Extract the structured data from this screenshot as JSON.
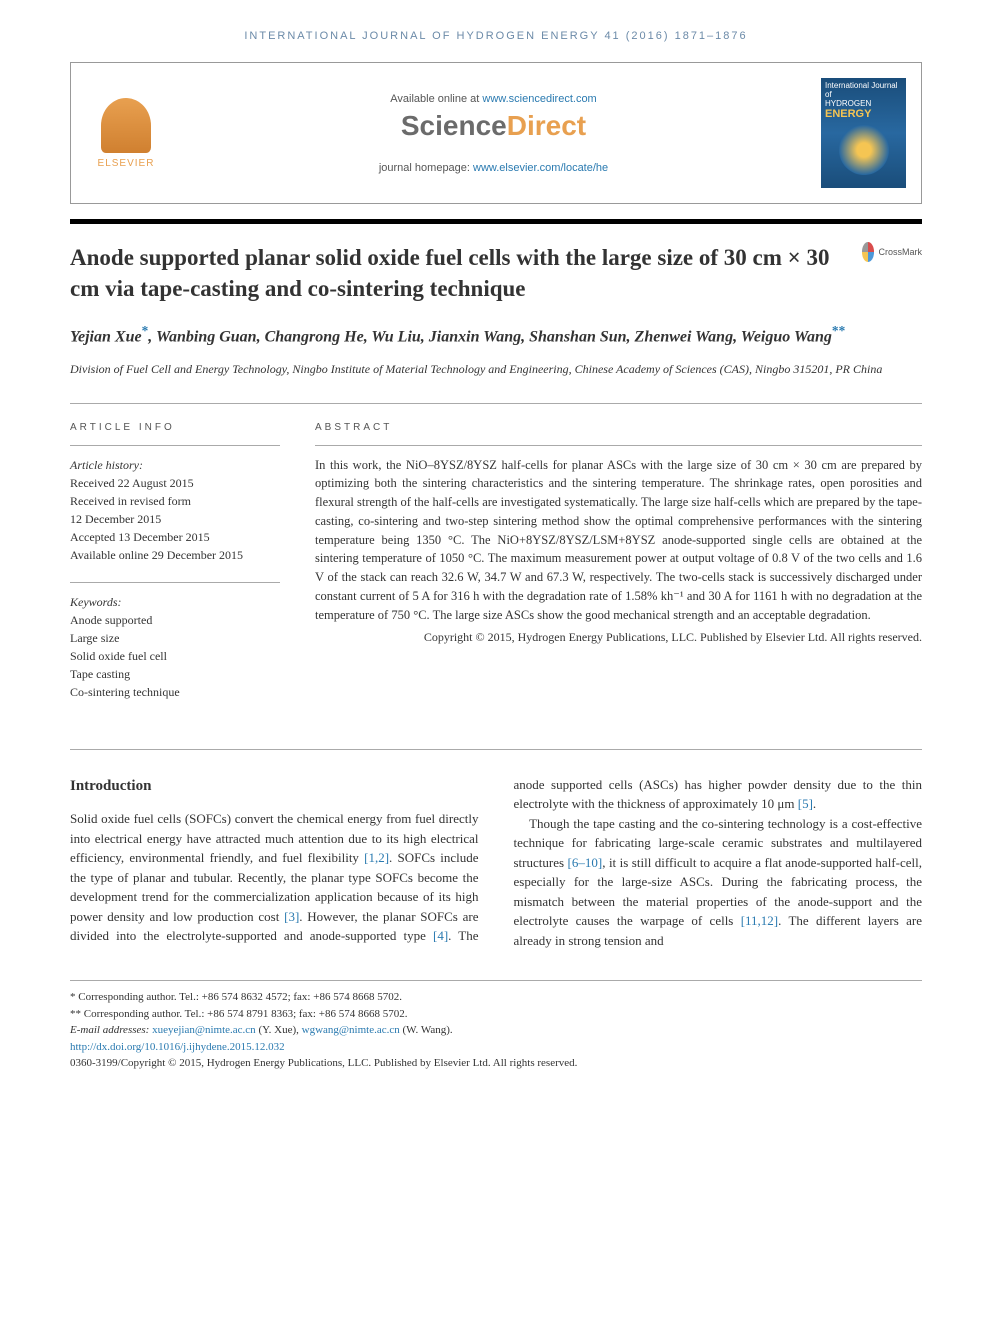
{
  "journal_header": "INTERNATIONAL JOURNAL OF HYDROGEN ENERGY 41 (2016) 1871–1876",
  "top_box": {
    "available_prefix": "Available online at ",
    "available_link": "www.sciencedirect.com",
    "sd_sci": "Science",
    "sd_dir": "Direct",
    "homepage_prefix": "journal homepage: ",
    "homepage_link": "www.elsevier.com/locate/he",
    "elsevier_label": "ELSEVIER",
    "cover_title_line1": "International Journal of",
    "cover_title_line2": "HYDROGEN",
    "cover_title_line3": "ENERGY"
  },
  "crossmark_label": "CrossMark",
  "article_title": "Anode supported planar solid oxide fuel cells with the large size of 30 cm × 30 cm via tape-casting and co-sintering technique",
  "authors_html": "Yejian Xue<sup>*</sup>, Wanbing Guan, Changrong He, Wu Liu, Jianxin Wang, Shanshan Sun, Zhenwei Wang, Weiguo Wang<sup>**</sup>",
  "affiliation": "Division of Fuel Cell and Energy Technology, Ningbo Institute of Material Technology and Engineering, Chinese Academy of Sciences (CAS), Ningbo 315201, PR China",
  "info": {
    "heading": "ARTICLE INFO",
    "history_label": "Article history:",
    "received": "Received 22 August 2015",
    "revised1": "Received in revised form",
    "revised2": "12 December 2015",
    "accepted": "Accepted 13 December 2015",
    "online": "Available online 29 December 2015",
    "keywords_label": "Keywords:",
    "kw1": "Anode supported",
    "kw2": "Large size",
    "kw3": "Solid oxide fuel cell",
    "kw4": "Tape casting",
    "kw5": "Co-sintering technique"
  },
  "abstract": {
    "heading": "ABSTRACT",
    "text": "In this work, the NiO–8YSZ/8YSZ half-cells for planar ASCs with the large size of 30 cm × 30 cm are prepared by optimizing both the sintering characteristics and the sintering temperature. The shrinkage rates, open porosities and flexural strength of the half-cells are investigated systematically. The large size half-cells which are prepared by the tape-casting, co-sintering and two-step sintering method show the optimal comprehensive performances with the sintering temperature being 1350 °C. The NiO+8YSZ/8YSZ/LSM+8YSZ anode-supported single cells are obtained at the sintering temperature of 1050 °C. The maximum measurement power at output voltage of 0.8 V of the two cells and 1.6 V of the stack can reach 32.6 W, 34.7 W and 67.3 W, respectively. The two-cells stack is successively discharged under constant current of 5 A for 316 h with the degradation rate of 1.58% kh⁻¹ and 30 A for 1161 h with no degradation at the temperature of 750 °C. The large size ASCs show the good mechanical strength and an acceptable degradation.",
    "copyright": "Copyright © 2015, Hydrogen Energy Publications, LLC. Published by Elsevier Ltd. All rights reserved."
  },
  "body": {
    "intro_heading": "Introduction",
    "para1_a": "Solid oxide fuel cells (SOFCs) convert the chemical energy from fuel directly into electrical energy have attracted much attention due to its high electrical efficiency, environmental friendly, and fuel flexibility ",
    "ref1": "[1,2]",
    "para1_b": ". SOFCs include the type of planar and tubular. Recently, the planar type SOFCs become the development trend for the commercialization application because of its high power density and low production cost ",
    "ref2": "[3]",
    "para1_c": ". However, the planar SOFCs are divided into the electrolyte-",
    "para2_a": "supported and anode-supported type ",
    "ref3": "[4]",
    "para2_b": ". The anode supported cells (ASCs) has higher powder density due to the thin electrolyte with the thickness of approximately 10 μm ",
    "ref4": "[5]",
    "para2_c": ".",
    "para3_a": "Though the tape casting and the co-sintering technology is a cost-effective technique for fabricating large-scale ceramic substrates and multilayered structures ",
    "ref5": "[6–10]",
    "para3_b": ", it is still difficult to acquire a flat anode-supported half-cell, especially for the large-size ASCs. During the fabricating process, the mismatch between the material properties of the anode-support and the electrolyte causes the warpage of cells ",
    "ref6": "[11,12]",
    "para3_c": ". The different layers are already in strong tension and"
  },
  "footer": {
    "corr1": "* Corresponding author. Tel.: +86 574 8632 4572; fax: +86 574 8668 5702.",
    "corr2": "** Corresponding author. Tel.: +86 574 8791 8363; fax: +86 574 8668 5702.",
    "email_prefix": "E-mail addresses: ",
    "email1": "xueyejian@nimte.ac.cn",
    "email1_who": " (Y. Xue), ",
    "email2": "wgwang@nimte.ac.cn",
    "email2_who": " (W. Wang).",
    "doi": "http://dx.doi.org/10.1016/j.ijhydene.2015.12.032",
    "issn_line": "0360-3199/Copyright © 2015, Hydrogen Energy Publications, LLC. Published by Elsevier Ltd. All rights reserved."
  },
  "colors": {
    "link": "#2a7ab0",
    "orange": "#e8a050",
    "header_blue": "#6b8aa8",
    "text": "#333333",
    "cover_bg": "#1a4d7a",
    "cover_accent": "#f5c553"
  }
}
